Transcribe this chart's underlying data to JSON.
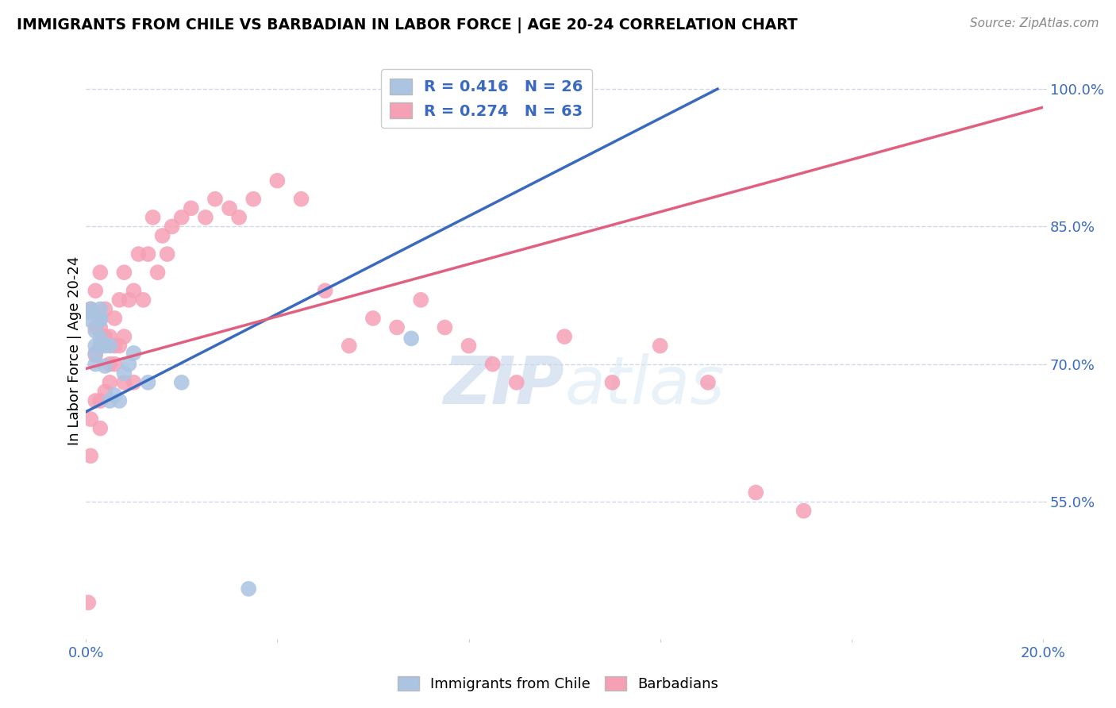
{
  "title": "IMMIGRANTS FROM CHILE VS BARBADIAN IN LABOR FORCE | AGE 20-24 CORRELATION CHART",
  "source": "Source: ZipAtlas.com",
  "ylabel": "In Labor Force | Age 20-24",
  "xlim": [
    0.0,
    0.2
  ],
  "ylim": [
    0.4,
    1.03
  ],
  "yticks": [
    0.55,
    0.7,
    0.85,
    1.0
  ],
  "ytick_labels": [
    "55.0%",
    "70.0%",
    "85.0%",
    "100.0%"
  ],
  "xticks": [
    0.0,
    0.04,
    0.08,
    0.12,
    0.16,
    0.2
  ],
  "xtick_labels": [
    "0.0%",
    "",
    "",
    "",
    "",
    "20.0%"
  ],
  "chile_R": 0.416,
  "chile_N": 26,
  "barbadian_R": 0.274,
  "barbadian_N": 63,
  "chile_color": "#aac4e2",
  "barbadian_color": "#f5a0b5",
  "chile_line_color": "#3a6abf",
  "barbadian_line_color": "#e06080",
  "legend_text_color": "#3a6abf",
  "watermark_zip": "ZIP",
  "watermark_atlas": "atlas",
  "background_color": "#ffffff",
  "grid_color": "#d0d8e8",
  "axis_color": "#3a6abf",
  "chile_x": [
    0.001,
    0.001,
    0.001,
    0.002,
    0.002,
    0.002,
    0.002,
    0.003,
    0.003,
    0.003,
    0.003,
    0.004,
    0.004,
    0.005,
    0.005,
    0.006,
    0.007,
    0.008,
    0.009,
    0.01,
    0.013,
    0.02,
    0.034,
    0.068,
    0.098,
    0.098
  ],
  "chile_y": [
    0.756,
    0.748,
    0.76,
    0.7,
    0.712,
    0.72,
    0.736,
    0.748,
    0.75,
    0.76,
    0.728,
    0.698,
    0.72,
    0.66,
    0.72,
    0.666,
    0.66,
    0.69,
    0.7,
    0.712,
    0.68,
    0.68,
    0.455,
    0.728,
    0.998,
    1.0
  ],
  "barbadian_x": [
    0.0005,
    0.001,
    0.001,
    0.001,
    0.002,
    0.002,
    0.002,
    0.002,
    0.003,
    0.003,
    0.003,
    0.003,
    0.003,
    0.003,
    0.004,
    0.004,
    0.004,
    0.005,
    0.005,
    0.005,
    0.006,
    0.006,
    0.006,
    0.007,
    0.007,
    0.008,
    0.008,
    0.008,
    0.009,
    0.01,
    0.01,
    0.011,
    0.012,
    0.013,
    0.014,
    0.015,
    0.016,
    0.017,
    0.018,
    0.02,
    0.022,
    0.025,
    0.027,
    0.03,
    0.032,
    0.035,
    0.04,
    0.045,
    0.05,
    0.055,
    0.06,
    0.065,
    0.07,
    0.075,
    0.08,
    0.085,
    0.09,
    0.1,
    0.11,
    0.12,
    0.13,
    0.14,
    0.15
  ],
  "barbadian_y": [
    0.44,
    0.6,
    0.64,
    0.76,
    0.66,
    0.71,
    0.74,
    0.78,
    0.63,
    0.66,
    0.72,
    0.74,
    0.75,
    0.8,
    0.67,
    0.73,
    0.76,
    0.68,
    0.7,
    0.73,
    0.7,
    0.72,
    0.75,
    0.72,
    0.77,
    0.68,
    0.73,
    0.8,
    0.77,
    0.68,
    0.78,
    0.82,
    0.77,
    0.82,
    0.86,
    0.8,
    0.84,
    0.82,
    0.85,
    0.86,
    0.87,
    0.86,
    0.88,
    0.87,
    0.86,
    0.88,
    0.9,
    0.88,
    0.78,
    0.72,
    0.75,
    0.74,
    0.77,
    0.74,
    0.72,
    0.7,
    0.68,
    0.73,
    0.68,
    0.72,
    0.68,
    0.56,
    0.54
  ],
  "chile_line_x0": 0.0,
  "chile_line_y0": 0.648,
  "chile_line_x1": 0.132,
  "chile_line_y1": 1.0,
  "barb_line_x0": 0.0,
  "barb_line_y0": 0.695,
  "barb_line_x1": 0.2,
  "barb_line_y1": 0.98
}
